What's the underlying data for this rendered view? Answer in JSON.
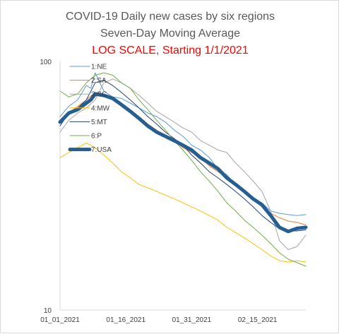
{
  "chart_data": {
    "type": "line",
    "title": "COVID-19 Daily new cases by six regions",
    "subtitle": "Seven-Day Moving Average",
    "subtitle2": "LOG SCALE, Starting 1/1/2021",
    "y_scale": "log",
    "ylim": [
      10,
      100
    ],
    "y_ticks": [
      "100",
      "10"
    ],
    "x_ticks": [
      {
        "label": "01_01_2021",
        "day": 0
      },
      {
        "label": "01_16_2021",
        "day": 15
      },
      {
        "label": "01_31_2021",
        "day": 30
      },
      {
        "label": "02_15_2021",
        "day": 45
      }
    ],
    "xlim": [
      0,
      56
    ],
    "grid": false,
    "legend_placement": "top-left, inside plot",
    "colors": {
      "title": "#595959",
      "subtitle2": "#ff0000",
      "axis": "#d9d9d9"
    },
    "series": [
      {
        "name": "1:NE",
        "color": "#5b9bd5",
        "points": [
          [
            0,
            60
          ],
          [
            2,
            66
          ],
          [
            4,
            70
          ],
          [
            6,
            80
          ],
          [
            7,
            78
          ],
          [
            8,
            90
          ],
          [
            10,
            76
          ],
          [
            12,
            72
          ],
          [
            14,
            71
          ],
          [
            16,
            68
          ],
          [
            18,
            65
          ],
          [
            20,
            62
          ],
          [
            22,
            60
          ],
          [
            24,
            57
          ],
          [
            26,
            53
          ],
          [
            28,
            50
          ],
          [
            30,
            46
          ],
          [
            32,
            44
          ],
          [
            34,
            41
          ],
          [
            36,
            37
          ],
          [
            38,
            35
          ],
          [
            40,
            32
          ],
          [
            42,
            30
          ],
          [
            44,
            28
          ],
          [
            46,
            27
          ],
          [
            48,
            25
          ],
          [
            50,
            24.5
          ],
          [
            52,
            24.2
          ],
          [
            54,
            24
          ],
          [
            56,
            24.2
          ]
        ]
      },
      {
        "name": "2:SA",
        "color": "#ed7d31",
        "points": [
          [
            0,
            58
          ],
          [
            2,
            62
          ],
          [
            4,
            66
          ],
          [
            6,
            70
          ],
          [
            8,
            75
          ],
          [
            10,
            74
          ],
          [
            12,
            72
          ],
          [
            14,
            68
          ],
          [
            16,
            64
          ],
          [
            18,
            60
          ],
          [
            20,
            56
          ],
          [
            22,
            53
          ],
          [
            24,
            50
          ],
          [
            26,
            48
          ],
          [
            28,
            45
          ],
          [
            30,
            43
          ],
          [
            32,
            41
          ],
          [
            34,
            38
          ],
          [
            36,
            36
          ],
          [
            38,
            34
          ],
          [
            40,
            32
          ],
          [
            42,
            30
          ],
          [
            44,
            28
          ],
          [
            46,
            26
          ],
          [
            48,
            24.5
          ],
          [
            50,
            23.5
          ],
          [
            52,
            22.8
          ],
          [
            54,
            22.5
          ],
          [
            56,
            22
          ]
        ]
      },
      {
        "name": "3:SC",
        "color": "#a5a5a5",
        "points": [
          [
            0,
            52
          ],
          [
            2,
            58
          ],
          [
            4,
            62
          ],
          [
            6,
            65
          ],
          [
            8,
            70
          ],
          [
            10,
            82
          ],
          [
            12,
            85
          ],
          [
            14,
            82
          ],
          [
            16,
            78
          ],
          [
            18,
            73
          ],
          [
            20,
            68
          ],
          [
            22,
            63
          ],
          [
            24,
            60
          ],
          [
            26,
            57
          ],
          [
            28,
            54
          ],
          [
            30,
            52
          ],
          [
            32,
            48
          ],
          [
            34,
            46
          ],
          [
            36,
            44
          ],
          [
            38,
            43
          ],
          [
            40,
            39
          ],
          [
            42,
            36
          ],
          [
            44,
            33
          ],
          [
            46,
            30
          ],
          [
            48,
            25
          ],
          [
            50,
            19
          ],
          [
            52,
            17.5
          ],
          [
            54,
            18
          ],
          [
            56,
            20
          ]
        ]
      },
      {
        "name": "4:MW",
        "color": "#ffc000",
        "points": [
          [
            0,
            41
          ],
          [
            2,
            43
          ],
          [
            4,
            45
          ],
          [
            6,
            47
          ],
          [
            8,
            45
          ],
          [
            10,
            42
          ],
          [
            12,
            39
          ],
          [
            14,
            36
          ],
          [
            16,
            34
          ],
          [
            18,
            32
          ],
          [
            20,
            31
          ],
          [
            22,
            30
          ],
          [
            24,
            29
          ],
          [
            26,
            28
          ],
          [
            28,
            27
          ],
          [
            30,
            26
          ],
          [
            32,
            25
          ],
          [
            34,
            24
          ],
          [
            36,
            23
          ],
          [
            38,
            21.5
          ],
          [
            40,
            20.5
          ],
          [
            42,
            19.5
          ],
          [
            44,
            18.5
          ],
          [
            46,
            17.5
          ],
          [
            48,
            16.5
          ],
          [
            50,
            15.8
          ],
          [
            52,
            15.6
          ],
          [
            54,
            15.8
          ],
          [
            56,
            15.6
          ]
        ]
      },
      {
        "name": "5:MT",
        "color": "#264478",
        "points": [
          [
            0,
            55
          ],
          [
            2,
            62
          ],
          [
            4,
            65
          ],
          [
            6,
            70
          ],
          [
            8,
            82
          ],
          [
            10,
            84
          ],
          [
            12,
            80
          ],
          [
            14,
            75
          ],
          [
            16,
            70
          ],
          [
            18,
            65
          ],
          [
            20,
            60
          ],
          [
            22,
            56
          ],
          [
            24,
            52
          ],
          [
            26,
            49
          ],
          [
            28,
            46
          ],
          [
            30,
            42
          ],
          [
            32,
            39
          ],
          [
            34,
            36
          ],
          [
            36,
            34
          ],
          [
            38,
            32
          ],
          [
            40,
            30
          ],
          [
            42,
            28
          ],
          [
            44,
            26
          ],
          [
            46,
            24
          ],
          [
            48,
            22.5
          ],
          [
            50,
            21.2
          ],
          [
            52,
            20.8
          ],
          [
            54,
            20.8
          ],
          [
            56,
            21
          ]
        ]
      },
      {
        "name": "6:P",
        "color": "#70ad47",
        "points": [
          [
            0,
            76
          ],
          [
            2,
            72
          ],
          [
            4,
            74
          ],
          [
            6,
            82
          ],
          [
            8,
            88
          ],
          [
            10,
            90
          ],
          [
            12,
            88
          ],
          [
            14,
            82
          ],
          [
            16,
            78
          ],
          [
            18,
            70
          ],
          [
            20,
            64
          ],
          [
            22,
            58
          ],
          [
            24,
            53
          ],
          [
            26,
            48
          ],
          [
            28,
            44
          ],
          [
            30,
            40
          ],
          [
            32,
            36
          ],
          [
            34,
            33
          ],
          [
            36,
            30
          ],
          [
            38,
            27
          ],
          [
            40,
            25
          ],
          [
            42,
            23
          ],
          [
            44,
            21.5
          ],
          [
            46,
            20
          ],
          [
            48,
            18.5
          ],
          [
            50,
            17
          ],
          [
            52,
            16
          ],
          [
            54,
            15.5
          ],
          [
            56,
            15
          ]
        ]
      },
      {
        "name": "7:USA",
        "color": "#255e91",
        "width": 5,
        "points": [
          [
            0,
            57
          ],
          [
            2,
            62
          ],
          [
            4,
            64
          ],
          [
            6,
            68
          ],
          [
            7,
            70
          ],
          [
            8,
            74
          ],
          [
            10,
            73
          ],
          [
            12,
            71
          ],
          [
            14,
            67
          ],
          [
            16,
            63
          ],
          [
            18,
            59
          ],
          [
            20,
            55
          ],
          [
            22,
            52
          ],
          [
            24,
            50
          ],
          [
            26,
            48
          ],
          [
            28,
            46
          ],
          [
            30,
            44
          ],
          [
            32,
            41
          ],
          [
            34,
            39
          ],
          [
            36,
            37
          ],
          [
            38,
            34
          ],
          [
            40,
            32
          ],
          [
            42,
            30
          ],
          [
            44,
            28
          ],
          [
            46,
            26.5
          ],
          [
            48,
            24
          ],
          [
            50,
            21.5
          ],
          [
            52,
            20.7
          ],
          [
            54,
            21.3
          ],
          [
            56,
            21.5
          ]
        ]
      }
    ]
  }
}
